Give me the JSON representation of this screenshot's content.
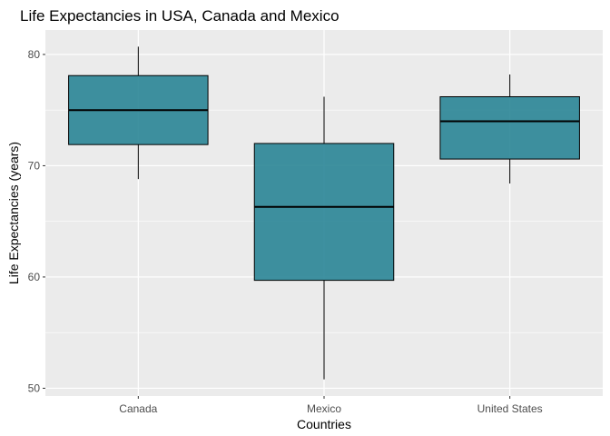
{
  "chart_data": {
    "type": "box",
    "title": "Life Expectancies in USA, Canada and Mexico",
    "xlabel": "Countries",
    "ylabel": "Life Expectancies (years)",
    "categories": [
      "Canada",
      "Mexico",
      "United States"
    ],
    "boxes": [
      {
        "name": "Canada",
        "min": 68.8,
        "q1": 71.9,
        "median": 75.0,
        "q3": 78.1,
        "max": 80.7
      },
      {
        "name": "Mexico",
        "min": 50.8,
        "q1": 59.7,
        "median": 66.3,
        "q3": 72.0,
        "max": 76.2
      },
      {
        "name": "United States",
        "min": 68.4,
        "q1": 70.6,
        "median": 74.0,
        "q3": 76.2,
        "max": 78.2
      }
    ],
    "yticks": [
      50,
      60,
      70,
      80
    ],
    "ylim": [
      49.3,
      82.2
    ],
    "grid": true,
    "colors": {
      "box_fill": "#2a8596",
      "panel": "#ebebeb",
      "grid": "#ffffff",
      "line": "#000000"
    }
  }
}
